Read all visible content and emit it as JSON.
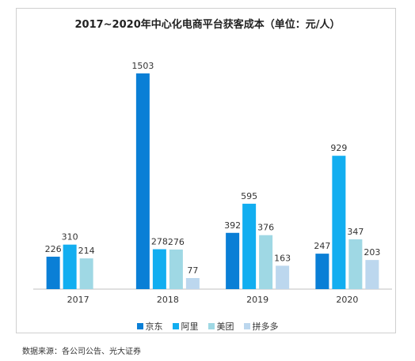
{
  "chart_data": {
    "type": "bar",
    "title": "2017~2020年中心化电商平台获客成本（单位：元/人）",
    "categories": [
      "2017",
      "2018",
      "2019",
      "2020"
    ],
    "series": [
      {
        "name": "京东",
        "color": "#0a7fd6",
        "values": [
          226,
          1503,
          392,
          247
        ]
      },
      {
        "name": "阿里",
        "color": "#12aef0",
        "values": [
          310,
          278,
          595,
          929
        ]
      },
      {
        "name": "美团",
        "color": "#9fd8e4",
        "values": [
          214,
          276,
          376,
          347
        ]
      },
      {
        "name": "拼多多",
        "color": "#bcd7ee",
        "values": [
          null,
          77,
          163,
          203
        ]
      }
    ],
    "ylim": [
      0,
      1600
    ]
  },
  "source_note": "数据来源：各公司公告、光大证券"
}
